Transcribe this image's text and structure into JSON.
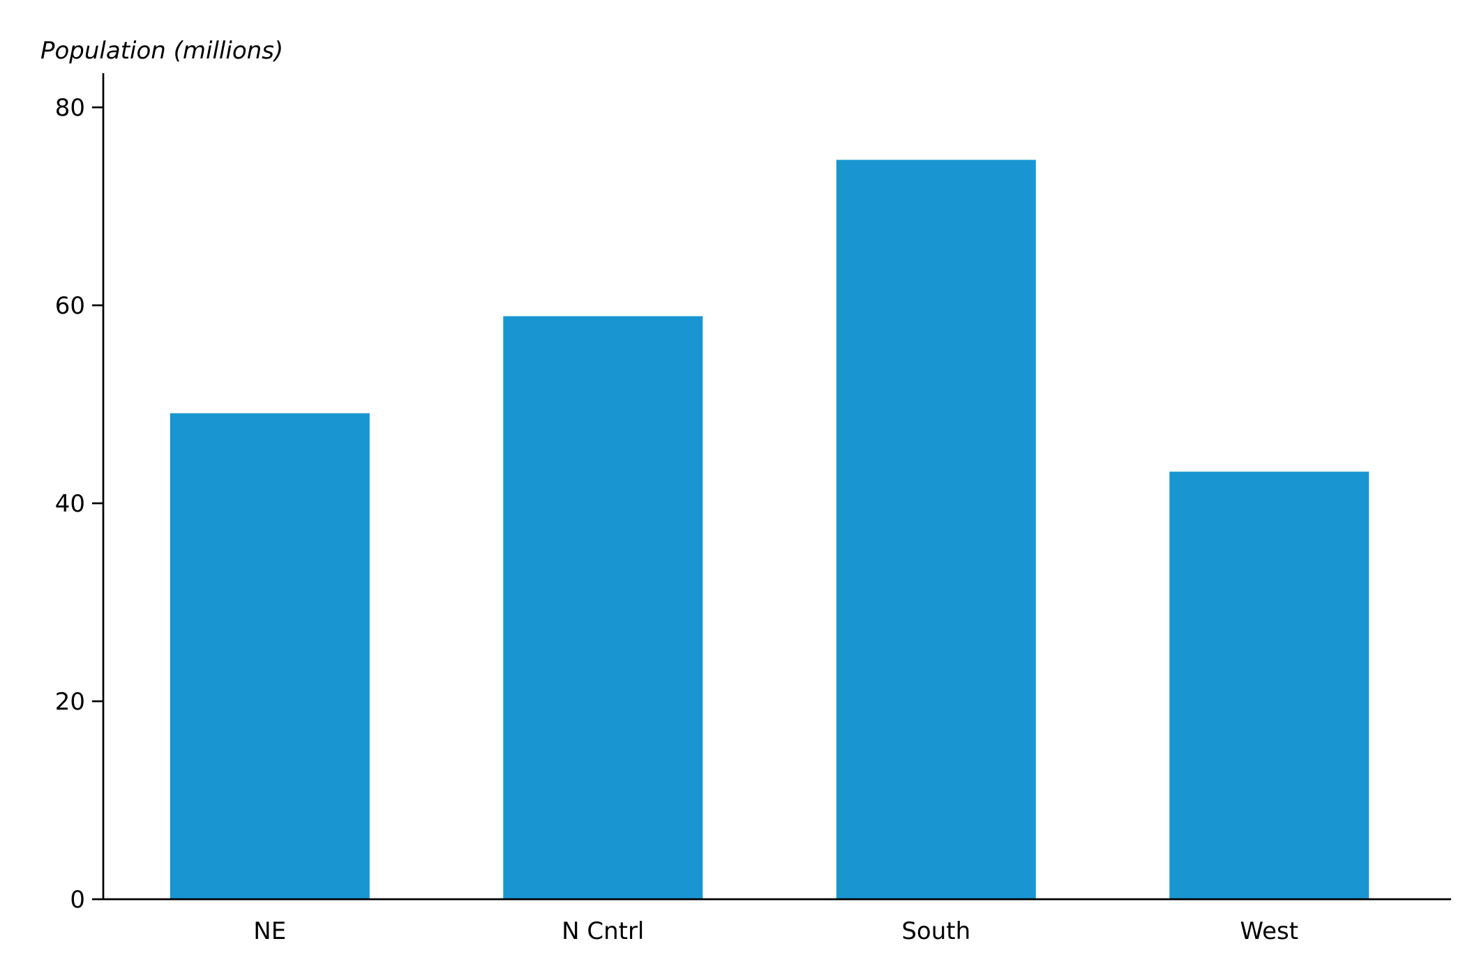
{
  "chart_data": {
    "type": "bar",
    "title": "",
    "xlabel": "",
    "ylabel": "Population (millions)",
    "categories": [
      "NE",
      "N Cntrl",
      "South",
      "West"
    ],
    "values": [
      49.1,
      58.9,
      74.7,
      43.2
    ],
    "ylim": [
      0,
      80
    ],
    "yticks": [
      0,
      20,
      40,
      60,
      80
    ],
    "ytick_labels": [
      "0",
      "20",
      "40",
      "60",
      "80"
    ],
    "grid": false,
    "legend": "none",
    "bar_color": "#1996d2",
    "axis_color": "#000000"
  }
}
